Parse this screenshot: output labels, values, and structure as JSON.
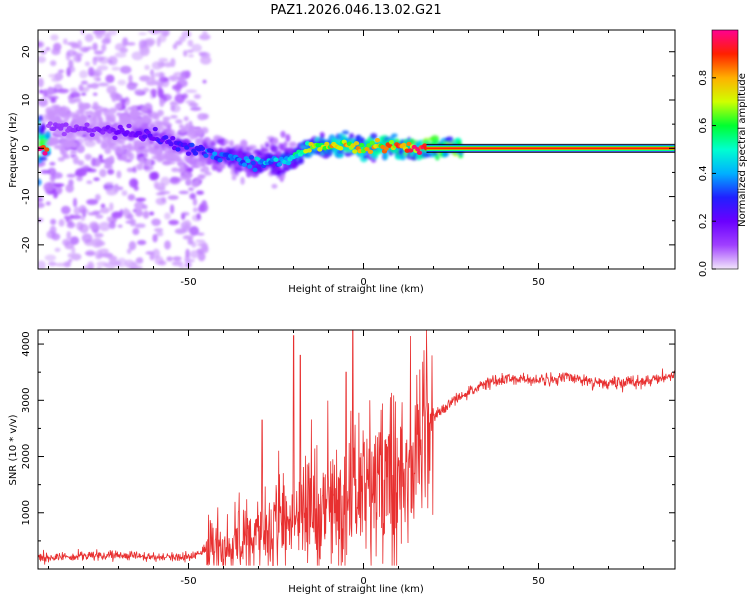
{
  "title": "PAZ1.2026.046.13.02.G21",
  "chart_data": [
    {
      "type": "heatmap",
      "name": "spectrogram",
      "xlabel": "Height of straight line (km)",
      "ylabel": "Frequency (Hz)",
      "xlim": [
        -93,
        89
      ],
      "ylim": [
        -25,
        24.5
      ],
      "xticks": [
        -50,
        0,
        50
      ],
      "yticks": [
        -20,
        -10,
        0,
        10,
        20
      ],
      "xtick_labels": [
        "-50",
        "0",
        "50"
      ],
      "ytick_labels": [
        "-20",
        "-10",
        "0",
        "10",
        "20"
      ],
      "colorbar": {
        "label": "Normalized spectral amplitude",
        "range": [
          0,
          1
        ],
        "ticks": [
          0.0,
          0.2,
          0.4,
          0.6,
          0.8
        ],
        "tick_labels": [
          "0.0",
          "0.2",
          "0.4",
          "0.6",
          "0.8"
        ],
        "colors": [
          "#f2e6fb",
          "#a040ff",
          "#6a00ff",
          "#2020ff",
          "#00b0ff",
          "#00ffd0",
          "#00ff30",
          "#d0ff00",
          "#ffb000",
          "#ff2000",
          "#ff0090"
        ]
      },
      "main_track": [
        {
          "x": -90,
          "y": 4.5,
          "amp": 0.12
        },
        {
          "x": -80,
          "y": 4.0,
          "amp": 0.15
        },
        {
          "x": -70,
          "y": 3.5,
          "amp": 0.2
        },
        {
          "x": -60,
          "y": 2.5,
          "amp": 0.25
        },
        {
          "x": -50,
          "y": 0.5,
          "amp": 0.3
        },
        {
          "x": -45,
          "y": -1.0,
          "amp": 0.35
        },
        {
          "x": -40,
          "y": -1.5,
          "amp": 0.4
        },
        {
          "x": -35,
          "y": -2.5,
          "amp": 0.4
        },
        {
          "x": -30,
          "y": -3.0,
          "amp": 0.45
        },
        {
          "x": -25,
          "y": -2.5,
          "amp": 0.45
        },
        {
          "x": -20,
          "y": -2.0,
          "amp": 0.55
        },
        {
          "x": -15,
          "y": 0.5,
          "amp": 0.75
        },
        {
          "x": -10,
          "y": 0.2,
          "amp": 0.8
        },
        {
          "x": -5,
          "y": 0.8,
          "amp": 0.8
        },
        {
          "x": 0,
          "y": 0.0,
          "amp": 0.85
        },
        {
          "x": 5,
          "y": 0.5,
          "amp": 0.85
        },
        {
          "x": 10,
          "y": 0.2,
          "amp": 0.9
        },
        {
          "x": 15,
          "y": 0.0,
          "amp": 0.95
        },
        {
          "x": 20,
          "y": 0.0,
          "amp": 1.0
        },
        {
          "x": 89,
          "y": 0.0,
          "amp": 1.0
        }
      ]
    },
    {
      "type": "line",
      "name": "snr",
      "xlabel": "Height of straight line (km)",
      "ylabel": "SNR (10 * v/v)",
      "xlim": [
        -93,
        89
      ],
      "ylim": [
        0,
        4250
      ],
      "xticks": [
        -50,
        0,
        50
      ],
      "yticks": [
        1000,
        2000,
        3000,
        4000
      ],
      "xtick_labels": [
        "-50",
        "0",
        "50"
      ],
      "ytick_labels": [
        "1000",
        "2000",
        "3000",
        "4000"
      ],
      "line_color": "#e83030",
      "trend": {
        "x": [
          -93,
          -70,
          -60,
          -50,
          -40,
          -30,
          -20,
          -15,
          -10,
          -5,
          0,
          5,
          10,
          15,
          20,
          25,
          30,
          35,
          40,
          50,
          60,
          70,
          80,
          89
        ],
        "y": [
          200,
          250,
          200,
          220,
          400,
          700,
          900,
          1000,
          1100,
          1300,
          1500,
          1700,
          2000,
          2300,
          2700,
          2950,
          3150,
          3300,
          3380,
          3350,
          3400,
          3300,
          3330,
          3450
        ]
      },
      "spikes": [
        {
          "x": -29,
          "y": 2650
        },
        {
          "x": -20,
          "y": 4150
        },
        {
          "x": -18,
          "y": 3800
        },
        {
          "x": -3,
          "y": 4250
        },
        {
          "x": -5,
          "y": 3500
        }
      ]
    }
  ]
}
